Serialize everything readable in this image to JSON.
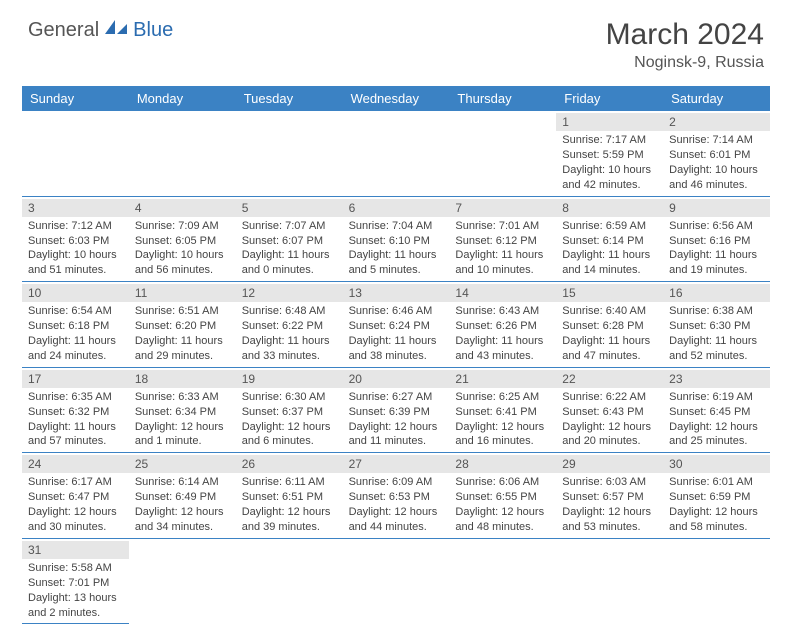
{
  "logo": {
    "general": "General",
    "blue": "Blue"
  },
  "title": "March 2024",
  "location": "Noginsk-9, Russia",
  "dayNames": [
    "Sunday",
    "Monday",
    "Tuesday",
    "Wednesday",
    "Thursday",
    "Friday",
    "Saturday"
  ],
  "colors": {
    "headerBar": "#3b82c4",
    "dayNumBg": "#e6e6e6",
    "text": "#444444",
    "logoBlue": "#2b6cb0",
    "rowBorder": "#3b82c4"
  },
  "firstDayOffset": 5,
  "days": [
    {
      "n": 1,
      "sunrise": "7:17 AM",
      "sunset": "5:59 PM",
      "dl": "10 hours and 42 minutes."
    },
    {
      "n": 2,
      "sunrise": "7:14 AM",
      "sunset": "6:01 PM",
      "dl": "10 hours and 46 minutes."
    },
    {
      "n": 3,
      "sunrise": "7:12 AM",
      "sunset": "6:03 PM",
      "dl": "10 hours and 51 minutes."
    },
    {
      "n": 4,
      "sunrise": "7:09 AM",
      "sunset": "6:05 PM",
      "dl": "10 hours and 56 minutes."
    },
    {
      "n": 5,
      "sunrise": "7:07 AM",
      "sunset": "6:07 PM",
      "dl": "11 hours and 0 minutes."
    },
    {
      "n": 6,
      "sunrise": "7:04 AM",
      "sunset": "6:10 PM",
      "dl": "11 hours and 5 minutes."
    },
    {
      "n": 7,
      "sunrise": "7:01 AM",
      "sunset": "6:12 PM",
      "dl": "11 hours and 10 minutes."
    },
    {
      "n": 8,
      "sunrise": "6:59 AM",
      "sunset": "6:14 PM",
      "dl": "11 hours and 14 minutes."
    },
    {
      "n": 9,
      "sunrise": "6:56 AM",
      "sunset": "6:16 PM",
      "dl": "11 hours and 19 minutes."
    },
    {
      "n": 10,
      "sunrise": "6:54 AM",
      "sunset": "6:18 PM",
      "dl": "11 hours and 24 minutes."
    },
    {
      "n": 11,
      "sunrise": "6:51 AM",
      "sunset": "6:20 PM",
      "dl": "11 hours and 29 minutes."
    },
    {
      "n": 12,
      "sunrise": "6:48 AM",
      "sunset": "6:22 PM",
      "dl": "11 hours and 33 minutes."
    },
    {
      "n": 13,
      "sunrise": "6:46 AM",
      "sunset": "6:24 PM",
      "dl": "11 hours and 38 minutes."
    },
    {
      "n": 14,
      "sunrise": "6:43 AM",
      "sunset": "6:26 PM",
      "dl": "11 hours and 43 minutes."
    },
    {
      "n": 15,
      "sunrise": "6:40 AM",
      "sunset": "6:28 PM",
      "dl": "11 hours and 47 minutes."
    },
    {
      "n": 16,
      "sunrise": "6:38 AM",
      "sunset": "6:30 PM",
      "dl": "11 hours and 52 minutes."
    },
    {
      "n": 17,
      "sunrise": "6:35 AM",
      "sunset": "6:32 PM",
      "dl": "11 hours and 57 minutes."
    },
    {
      "n": 18,
      "sunrise": "6:33 AM",
      "sunset": "6:34 PM",
      "dl": "12 hours and 1 minute."
    },
    {
      "n": 19,
      "sunrise": "6:30 AM",
      "sunset": "6:37 PM",
      "dl": "12 hours and 6 minutes."
    },
    {
      "n": 20,
      "sunrise": "6:27 AM",
      "sunset": "6:39 PM",
      "dl": "12 hours and 11 minutes."
    },
    {
      "n": 21,
      "sunrise": "6:25 AM",
      "sunset": "6:41 PM",
      "dl": "12 hours and 16 minutes."
    },
    {
      "n": 22,
      "sunrise": "6:22 AM",
      "sunset": "6:43 PM",
      "dl": "12 hours and 20 minutes."
    },
    {
      "n": 23,
      "sunrise": "6:19 AM",
      "sunset": "6:45 PM",
      "dl": "12 hours and 25 minutes."
    },
    {
      "n": 24,
      "sunrise": "6:17 AM",
      "sunset": "6:47 PM",
      "dl": "12 hours and 30 minutes."
    },
    {
      "n": 25,
      "sunrise": "6:14 AM",
      "sunset": "6:49 PM",
      "dl": "12 hours and 34 minutes."
    },
    {
      "n": 26,
      "sunrise": "6:11 AM",
      "sunset": "6:51 PM",
      "dl": "12 hours and 39 minutes."
    },
    {
      "n": 27,
      "sunrise": "6:09 AM",
      "sunset": "6:53 PM",
      "dl": "12 hours and 44 minutes."
    },
    {
      "n": 28,
      "sunrise": "6:06 AM",
      "sunset": "6:55 PM",
      "dl": "12 hours and 48 minutes."
    },
    {
      "n": 29,
      "sunrise": "6:03 AM",
      "sunset": "6:57 PM",
      "dl": "12 hours and 53 minutes."
    },
    {
      "n": 30,
      "sunrise": "6:01 AM",
      "sunset": "6:59 PM",
      "dl": "12 hours and 58 minutes."
    },
    {
      "n": 31,
      "sunrise": "5:58 AM",
      "sunset": "7:01 PM",
      "dl": "13 hours and 2 minutes."
    }
  ],
  "labels": {
    "sunrise": "Sunrise:",
    "sunset": "Sunset:",
    "daylight": "Daylight:"
  }
}
